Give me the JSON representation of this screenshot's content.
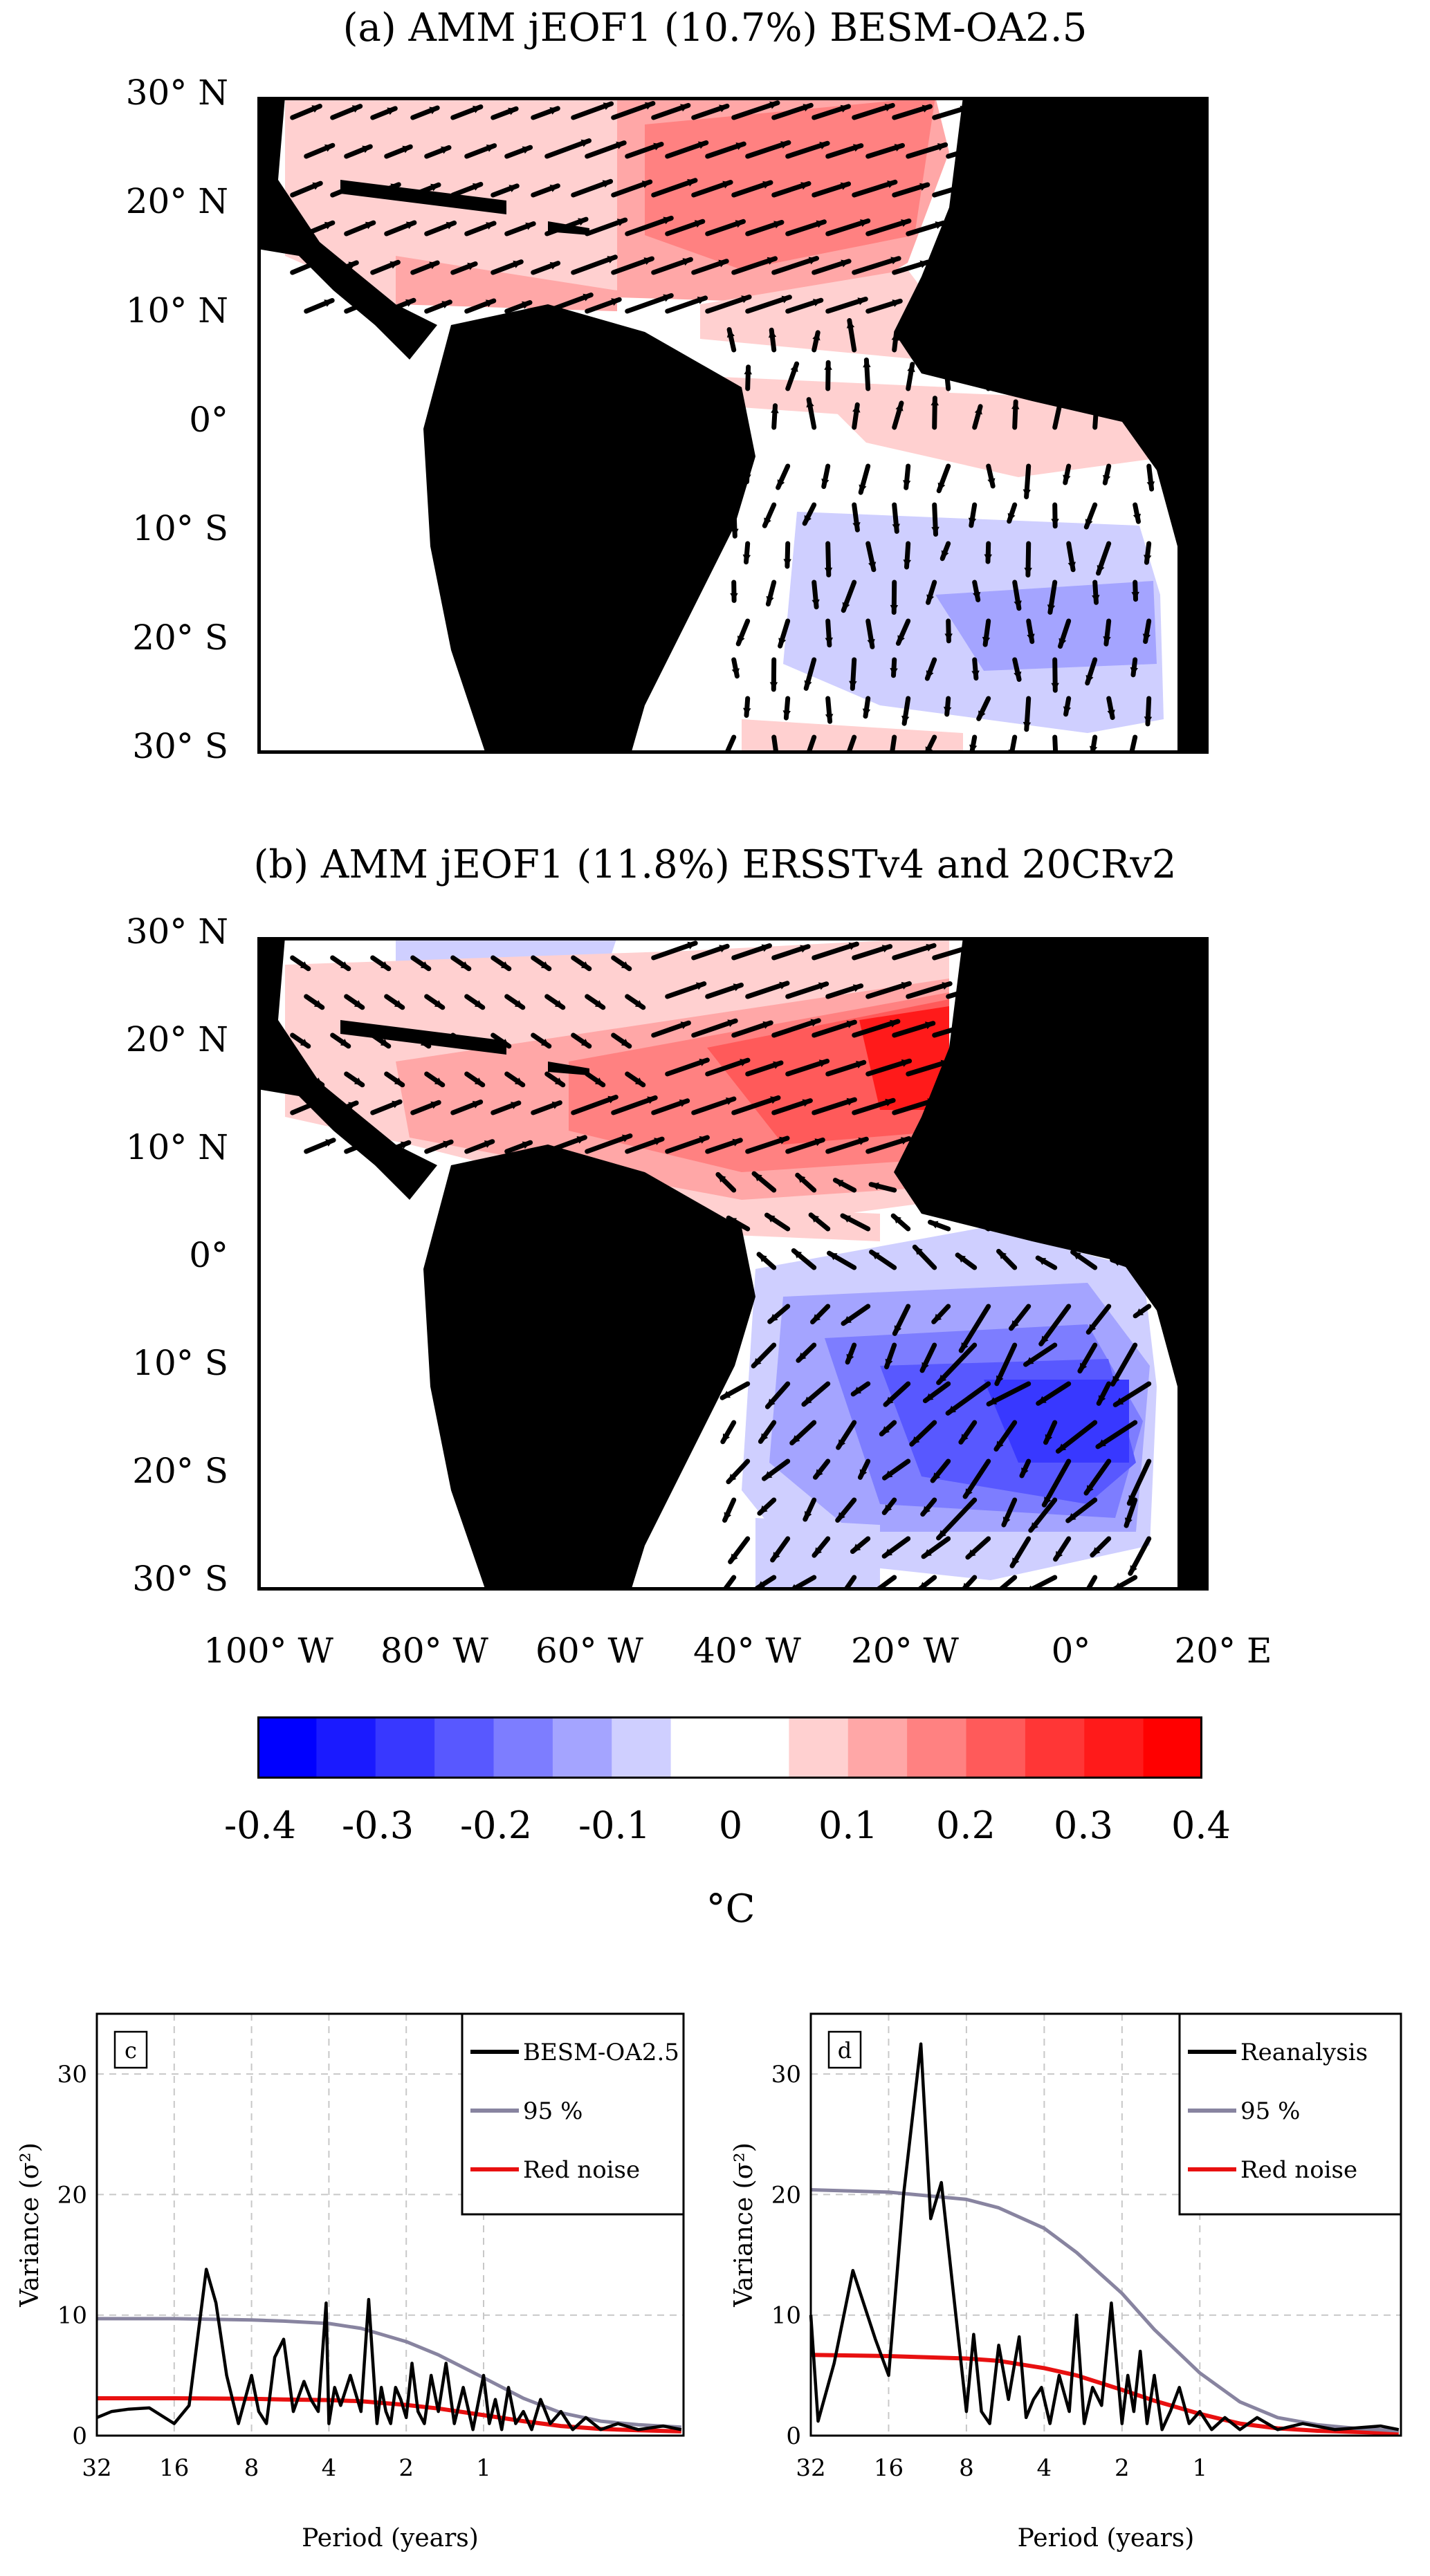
{
  "map_a": {
    "title": "(a) AMM jEOF1 (10.7%) BESM-OA2.5"
  },
  "map_b": {
    "title": "(b) AMM jEOF1 (11.8%) ERSSTv4 and 20CRv2"
  },
  "lat_labels": [
    "30° N",
    "20° N",
    "10° N",
    "0°",
    "10° S",
    "20° S",
    "30° S"
  ],
  "lon_labels": [
    "100° W",
    "80° W",
    "60° W",
    "40° W",
    "20° W",
    "0°",
    "20° E"
  ],
  "colorbar": {
    "ticks": [
      "-0.4",
      "-0.3",
      "-0.2",
      "-0.1",
      "0",
      "0.1",
      "0.2",
      "0.3",
      "0.4"
    ],
    "unit": "°C",
    "colors": [
      "#0000ff",
      "#1a1aff",
      "#3838ff",
      "#5858ff",
      "#7d7dff",
      "#a4a4ff",
      "#cfcfff",
      "#ffffff",
      "#ffffff",
      "#ffd0d0",
      "#ffa7a7",
      "#ff8181",
      "#ff5a5a",
      "#ff3636",
      "#ff1a1a",
      "#ff0000"
    ]
  },
  "chart_data": [
    {
      "type": "line",
      "panel_label": "c",
      "xlabel": "Period (years)",
      "ylabel": "Variance (σ²)",
      "x_ticks": [
        "32",
        "16",
        "8",
        "4",
        "2",
        "1"
      ],
      "ylim": [
        0,
        35
      ],
      "y_ticks": [
        0,
        10,
        20,
        30
      ],
      "grid": true,
      "legend_position": "top-right",
      "series": [
        {
          "name": "BESM-OA2.5",
          "color": "#000000",
          "x": [
            32,
            28,
            24,
            20,
            16,
            14,
            12,
            11,
            10,
            9,
            8,
            7.5,
            7,
            6.5,
            6,
            5.5,
            5,
            4.7,
            4.4,
            4.1,
            4,
            3.8,
            3.6,
            3.3,
            3,
            2.8,
            2.6,
            2.5,
            2.4,
            2.3,
            2.2,
            2.1,
            2,
            1.9,
            1.8,
            1.7,
            1.6,
            1.5,
            1.4,
            1.3,
            1.2,
            1.1,
            1,
            0.95,
            0.9,
            0.85,
            0.8,
            0.75,
            0.7,
            0.65,
            0.6,
            0.55,
            0.5,
            0.45,
            0.4,
            0.35,
            0.3,
            0.25,
            0.2,
            0.17
          ],
          "y": [
            1.5,
            2,
            2.2,
            2.3,
            1,
            2.5,
            13.8,
            11,
            5,
            1,
            5,
            2,
            1,
            6.5,
            8,
            2,
            4.5,
            3,
            2,
            11,
            1,
            4,
            2.5,
            5,
            2,
            11.3,
            1,
            4,
            2,
            1,
            4,
            3,
            1.5,
            6,
            2,
            1,
            5,
            2,
            6,
            1,
            4,
            0.5,
            5,
            1,
            3,
            0.5,
            4,
            1,
            2,
            0.5,
            3,
            1,
            2,
            0.5,
            1.5,
            0.5,
            1,
            0.5,
            0.8,
            0.5
          ]
        },
        {
          "name": "95 %",
          "color": "#8884a0",
          "x": [
            32,
            16,
            8,
            6,
            4,
            3,
            2,
            1.5,
            1,
            0.7,
            0.5,
            0.35,
            0.25,
            0.17
          ],
          "y": [
            9.7,
            9.7,
            9.6,
            9.5,
            9.3,
            8.9,
            7.8,
            6.7,
            4.8,
            3.1,
            1.9,
            1.2,
            0.9,
            0.7
          ]
        },
        {
          "name": "Red noise",
          "color": "#e81010",
          "x": [
            32,
            16,
            8,
            6,
            4,
            3,
            2,
            1.5,
            1,
            0.7,
            0.5,
            0.35,
            0.25,
            0.17
          ],
          "y": [
            3.1,
            3.1,
            3.05,
            3.0,
            2.95,
            2.85,
            2.55,
            2.25,
            1.7,
            1.2,
            0.8,
            0.55,
            0.45,
            0.35
          ]
        }
      ]
    },
    {
      "type": "line",
      "panel_label": "d",
      "xlabel": "Period (years)",
      "ylabel": "Variance (σ²)",
      "x_ticks": [
        "32",
        "16",
        "8",
        "4",
        "2",
        "1"
      ],
      "ylim": [
        0,
        35
      ],
      "y_ticks": [
        0,
        10,
        20,
        30
      ],
      "grid": true,
      "legend_position": "top-right",
      "series": [
        {
          "name": "Reanalysis",
          "color": "#000000",
          "x": [
            32,
            30,
            26,
            22,
            18,
            16,
            14,
            12,
            11,
            10,
            9,
            8,
            7.5,
            7,
            6.5,
            6,
            5.5,
            5,
            4.7,
            4.4,
            4.1,
            3.8,
            3.5,
            3.2,
            3,
            2.8,
            2.6,
            2.4,
            2.2,
            2,
            1.9,
            1.8,
            1.7,
            1.6,
            1.5,
            1.4,
            1.3,
            1.2,
            1.1,
            1,
            0.9,
            0.8,
            0.7,
            0.6,
            0.5,
            0.4,
            0.3,
            0.2,
            0.17
          ],
          "y": [
            10,
            1.2,
            6,
            13.7,
            8,
            5,
            20,
            32.5,
            18,
            21,
            12,
            2,
            8.4,
            2,
            1,
            7.5,
            3,
            8.2,
            1.5,
            3,
            4,
            1,
            5,
            2,
            10,
            1,
            4,
            2.5,
            11,
            1,
            5,
            2,
            7,
            1,
            5,
            0.5,
            2,
            4,
            1,
            2,
            0.5,
            1.5,
            0.5,
            1.5,
            0.5,
            1,
            0.5,
            0.8,
            0.5
          ]
        },
        {
          "name": "95 %",
          "color": "#8884a0",
          "x": [
            32,
            16,
            8,
            6,
            4,
            3,
            2,
            1.5,
            1,
            0.7,
            0.5,
            0.35,
            0.25,
            0.17
          ],
          "y": [
            20.4,
            20.2,
            19.6,
            18.9,
            17.2,
            15.2,
            11.8,
            8.8,
            5.2,
            2.8,
            1.5,
            0.9,
            0.6,
            0.4
          ]
        },
        {
          "name": "Red noise",
          "color": "#e81010",
          "x": [
            32,
            16,
            8,
            6,
            4,
            3,
            2,
            1.5,
            1,
            0.7,
            0.5,
            0.35,
            0.25,
            0.17
          ],
          "y": [
            6.7,
            6.6,
            6.4,
            6.2,
            5.6,
            5.0,
            3.8,
            2.9,
            1.8,
            1.0,
            0.6,
            0.4,
            0.3,
            0.2
          ]
        }
      ]
    }
  ]
}
